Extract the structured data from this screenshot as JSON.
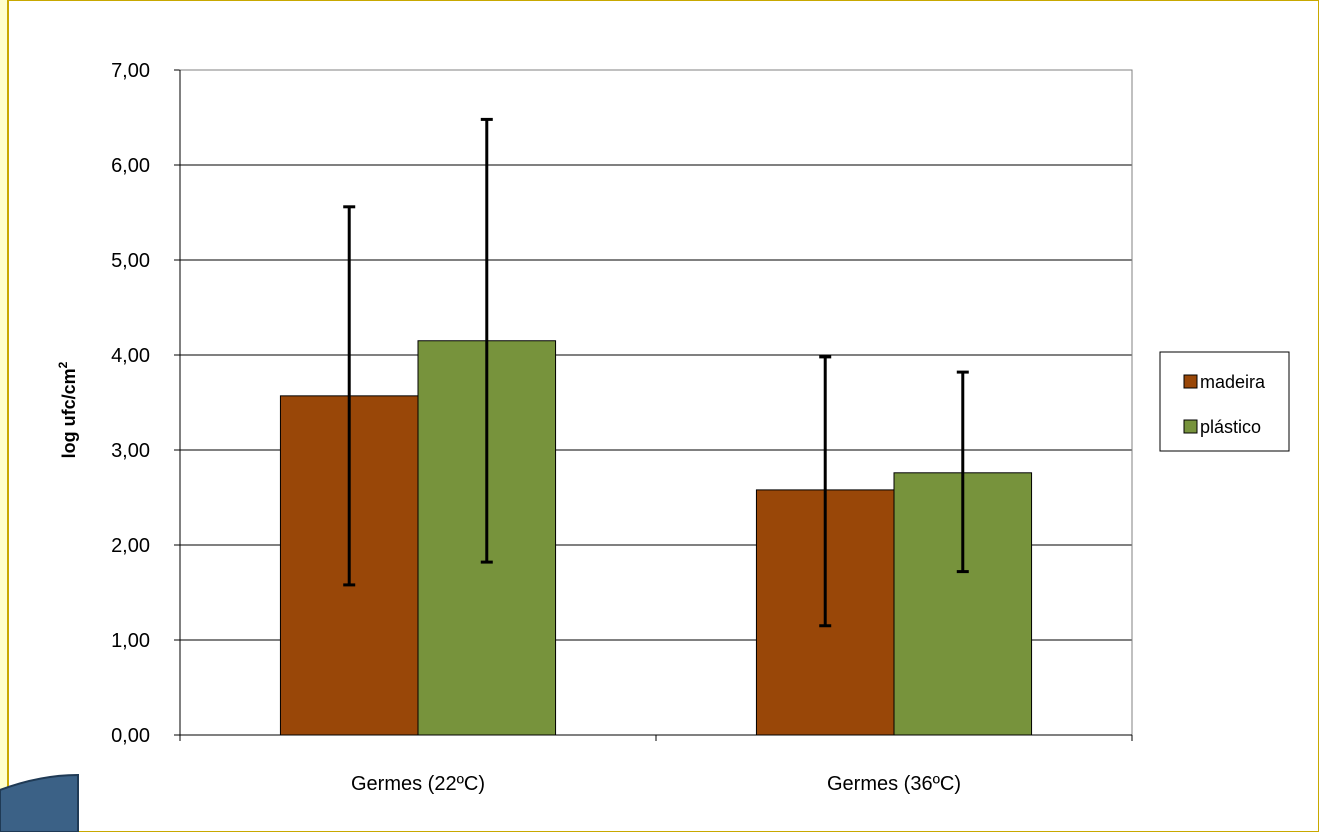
{
  "chart_data": {
    "type": "bar",
    "categories": [
      "Germes (22ºC)",
      "Germes (36ºC)"
    ],
    "series": [
      {
        "name": "madeira",
        "values": [
          3.57,
          2.58
        ],
        "err_low": [
          1.58,
          1.15
        ],
        "err_high": [
          5.56,
          3.98
        ],
        "color": "#994708"
      },
      {
        "name": "plástico",
        "values": [
          4.15,
          2.76
        ],
        "err_low": [
          1.82,
          1.72
        ],
        "err_high": [
          6.48,
          3.82
        ],
        "color": "#77933c"
      }
    ],
    "title": "",
    "xlabel": "",
    "ylabel": "log ufc/cm",
    "ylabel_superscript": "2",
    "ylim": [
      0,
      7
    ],
    "yticks": [
      "0,00",
      "1,00",
      "2,00",
      "3,00",
      "4,00",
      "5,00",
      "6,00",
      "7,00"
    ],
    "grid": true,
    "legend_position": "right"
  },
  "colors": {
    "background": "#ffffcc",
    "plot_area": "#ffffff",
    "page_border": "#c8a800",
    "corner_shape": "#3b6186"
  }
}
